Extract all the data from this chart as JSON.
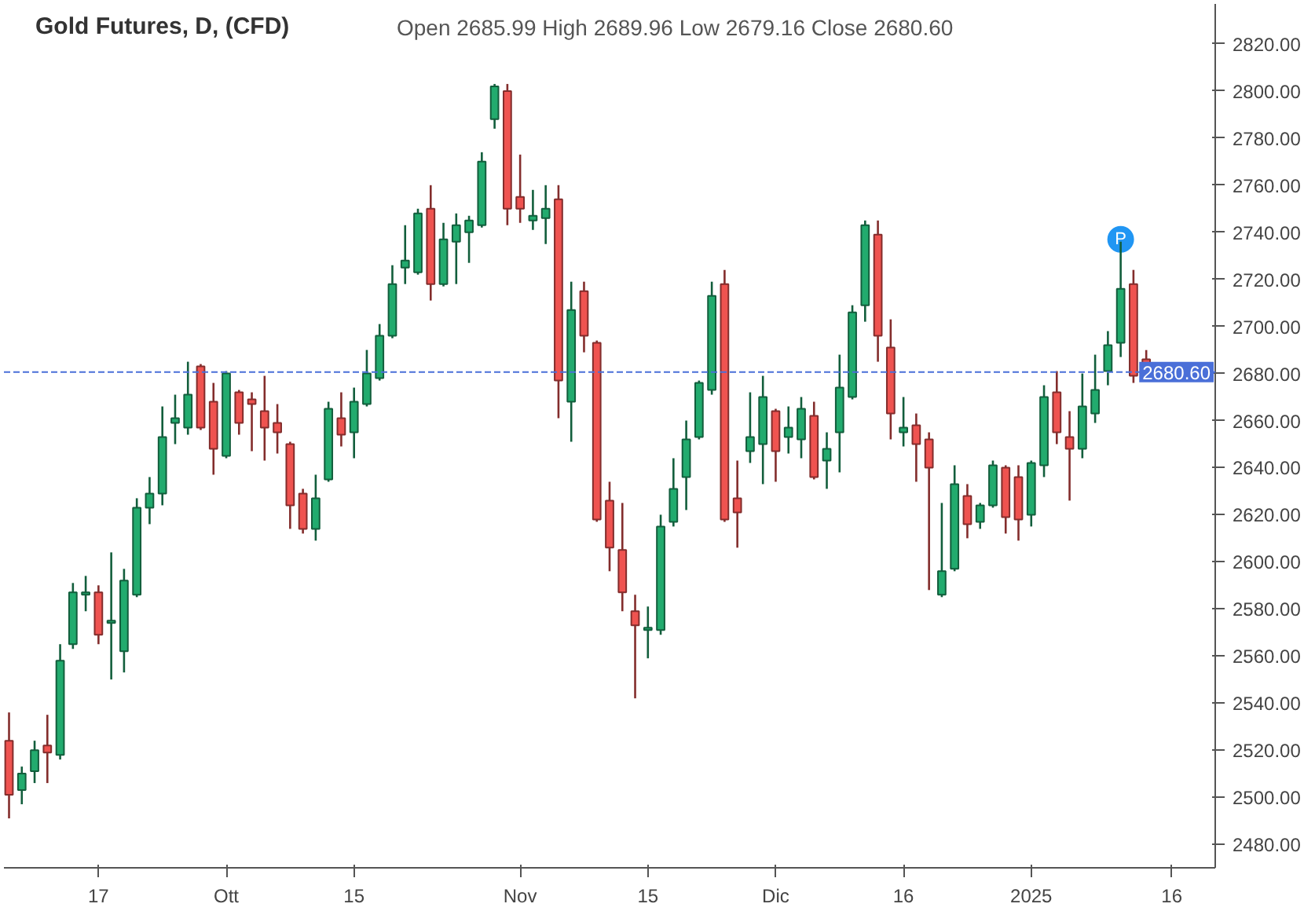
{
  "chart_data": {
    "type": "candlestick",
    "title": "Gold Futures, D, (CFD)",
    "subtitle": "Open 2685.99  High 2689.96  Low 2679.16  Close 2680.60",
    "categories": [
      null,
      null,
      null,
      null,
      null,
      null,
      null,
      "17",
      null,
      null,
      null,
      null,
      null,
      null,
      null,
      null,
      null,
      "Ott",
      null,
      null,
      null,
      null,
      null,
      null,
      null,
      null,
      null,
      "15",
      null,
      null,
      null,
      null,
      null,
      null,
      null,
      null,
      null,
      null,
      null,
      null,
      "Nov",
      null,
      null,
      null,
      null,
      null,
      null,
      null,
      null,
      null,
      "15",
      null,
      null,
      null,
      null,
      null,
      null,
      null,
      null,
      null,
      "Dic",
      null,
      null,
      null,
      null,
      null,
      null,
      null,
      null,
      null,
      "16",
      null,
      null,
      null,
      null,
      null,
      null,
      null,
      null,
      null,
      "2025",
      null,
      null,
      null,
      null,
      null,
      null,
      null,
      null,
      null,
      null,
      "16"
    ],
    "ohlc": [
      [
        2524,
        2536,
        2491,
        2501
      ],
      [
        2503,
        2513,
        2497,
        2510
      ],
      [
        2511,
        2524,
        2506,
        2520
      ],
      [
        2522,
        2535,
        2506,
        2519
      ],
      [
        2518,
        2565,
        2516,
        2558
      ],
      [
        2565,
        2591,
        2563,
        2587
      ],
      [
        2586,
        2594,
        2579,
        2587
      ],
      [
        2587,
        2590,
        2565,
        2569
      ],
      [
        2574,
        2604,
        2550,
        2575
      ],
      [
        2562,
        2597,
        2553,
        2592
      ],
      [
        2586,
        2627,
        2585,
        2623
      ],
      [
        2623,
        2636,
        2616,
        2629
      ],
      [
        2629,
        2666,
        2624,
        2653
      ],
      [
        2659,
        2671,
        2650,
        2661
      ],
      [
        2657,
        2685,
        2654,
        2671
      ],
      [
        2683,
        2684,
        2656,
        2657
      ],
      [
        2668,
        2676,
        2637,
        2648
      ],
      [
        2645,
        2681,
        2644,
        2680
      ],
      [
        2672,
        2673,
        2654,
        2659
      ],
      [
        2669,
        2672,
        2647,
        2667
      ],
      [
        2664,
        2679,
        2643,
        2657
      ],
      [
        2659,
        2667,
        2646,
        2655
      ],
      [
        2650,
        2651,
        2614,
        2624
      ],
      [
        2629,
        2631,
        2612,
        2614
      ],
      [
        2614,
        2637,
        2609,
        2627
      ],
      [
        2635,
        2668,
        2634,
        2665
      ],
      [
        2661,
        2672,
        2649,
        2654
      ],
      [
        2655,
        2674,
        2644,
        2668
      ],
      [
        2667,
        2690,
        2666,
        2680
      ],
      [
        2678,
        2701,
        2677,
        2696
      ],
      [
        2696,
        2726,
        2695,
        2718
      ],
      [
        2725,
        2743,
        2718,
        2728
      ],
      [
        2723,
        2750,
        2722,
        2748
      ],
      [
        2750,
        2760,
        2711,
        2718
      ],
      [
        2718,
        2744,
        2717,
        2737
      ],
      [
        2736,
        2748,
        2718,
        2743
      ],
      [
        2740,
        2747,
        2727,
        2745
      ],
      [
        2743,
        2774,
        2742,
        2770
      ],
      [
        2788,
        2803,
        2784,
        2802
      ],
      [
        2800,
        2803,
        2743,
        2750
      ],
      [
        2755,
        2773,
        2744,
        2750
      ],
      [
        2745,
        2758,
        2741,
        2747
      ],
      [
        2746,
        2760,
        2735,
        2750
      ],
      [
        2754,
        2760,
        2661,
        2677
      ],
      [
        2668,
        2719,
        2651,
        2707
      ],
      [
        2715,
        2719,
        2689,
        2696
      ],
      [
        2693,
        2694,
        2617,
        2618
      ],
      [
        2626,
        2634,
        2596,
        2606
      ],
      [
        2605,
        2625,
        2579,
        2587
      ],
      [
        2579,
        2586,
        2542,
        2573
      ],
      [
        2571,
        2581,
        2559,
        2572
      ],
      [
        2571,
        2620,
        2569,
        2615
      ],
      [
        2617,
        2644,
        2615,
        2631
      ],
      [
        2636,
        2660,
        2622,
        2652
      ],
      [
        2653,
        2677,
        2652,
        2676
      ],
      [
        2673,
        2719,
        2671,
        2713
      ],
      [
        2718,
        2724,
        2617,
        2618
      ],
      [
        2627,
        2643,
        2606,
        2621
      ],
      [
        2647,
        2672,
        2642,
        2653
      ],
      [
        2650,
        2679,
        2633,
        2670
      ],
      [
        2664,
        2665,
        2634,
        2647
      ],
      [
        2653,
        2666,
        2646,
        2657
      ],
      [
        2652,
        2670,
        2644,
        2665
      ],
      [
        2662,
        2668,
        2635,
        2636
      ],
      [
        2643,
        2655,
        2631,
        2648
      ],
      [
        2655,
        2688,
        2638,
        2674
      ],
      [
        2670,
        2709,
        2669,
        2706
      ],
      [
        2709,
        2745,
        2702,
        2743
      ],
      [
        2739,
        2745,
        2685,
        2696
      ],
      [
        2691,
        2703,
        2652,
        2663
      ],
      [
        2655,
        2670,
        2649,
        2657
      ],
      [
        2658,
        2663,
        2634,
        2650
      ],
      [
        2652,
        2655,
        2588,
        2640
      ],
      [
        2586,
        2625,
        2585,
        2596
      ],
      [
        2597,
        2641,
        2596,
        2633
      ],
      [
        2628,
        2633,
        2610,
        2616
      ],
      [
        2617,
        2625,
        2614,
        2624
      ],
      [
        2624,
        2643,
        2623,
        2641
      ],
      [
        2640,
        2641,
        2612,
        2619
      ],
      [
        2636,
        2641,
        2609,
        2618
      ],
      [
        2620,
        2643,
        2615,
        2642
      ],
      [
        2641,
        2675,
        2636,
        2670
      ],
      [
        2672,
        2681,
        2650,
        2655
      ],
      [
        2653,
        2664,
        2626,
        2648
      ],
      [
        2648,
        2680,
        2644,
        2666
      ],
      [
        2663,
        2688,
        2659,
        2673
      ],
      [
        2681,
        2698,
        2675,
        2692
      ],
      [
        2693,
        2736,
        2687,
        2716
      ],
      [
        2718,
        2724,
        2676,
        2679
      ],
      [
        2685.99,
        2689.96,
        2679.16,
        2680.6
      ],
      null,
      null
    ],
    "colors": [
      "#ef5350",
      "#22ab6e",
      "#22ab6e",
      "#ef5350",
      "#22ab6e",
      "#22ab6e",
      "#22ab6e",
      "#ef5350",
      "#22ab6e",
      "#22ab6e",
      "#22ab6e",
      "#22ab6e",
      "#22ab6e",
      "#22ab6e",
      "#22ab6e",
      "#ef5350",
      "#ef5350",
      "#22ab6e",
      "#ef5350",
      "#ef5350",
      "#ef5350",
      "#ef5350",
      "#ef5350",
      "#ef5350",
      "#22ab6e",
      "#22ab6e",
      "#ef5350",
      "#22ab6e",
      "#22ab6e",
      "#22ab6e",
      "#22ab6e",
      "#22ab6e",
      "#22ab6e",
      "#ef5350",
      "#22ab6e",
      "#22ab6e",
      "#22ab6e",
      "#22ab6e",
      "#22ab6e",
      "#ef5350",
      "#ef5350",
      "#22ab6e",
      "#22ab6e",
      "#ef5350",
      "#22ab6e",
      "#ef5350",
      "#ef5350",
      "#ef5350",
      "#ef5350",
      "#ef5350",
      "#22ab6e",
      "#22ab6e",
      "#22ab6e",
      "#22ab6e",
      "#22ab6e",
      "#22ab6e",
      "#ef5350",
      "#ef5350",
      "#22ab6e",
      "#22ab6e",
      "#ef5350",
      "#22ab6e",
      "#22ab6e",
      "#ef5350",
      "#22ab6e",
      "#22ab6e",
      "#22ab6e",
      "#22ab6e",
      "#ef5350",
      "#ef5350",
      "#22ab6e",
      "#ef5350",
      "#ef5350",
      "#22ab6e",
      "#22ab6e",
      "#ef5350",
      "#22ab6e",
      "#22ab6e",
      "#ef5350",
      "#ef5350",
      "#22ab6e",
      "#22ab6e",
      "#ef5350",
      "#ef5350",
      "#22ab6e",
      "#22ab6e",
      "#22ab6e",
      "#22ab6e",
      "#ef5350",
      "#ef5350",
      null,
      null
    ],
    "ylim": [
      2470,
      2837
    ],
    "yticks": [
      {
        "value": 2480,
        "label": "2480.00"
      },
      {
        "value": 2500,
        "label": "2500.00"
      },
      {
        "value": 2520,
        "label": "2520.00"
      },
      {
        "value": 2540,
        "label": "2540.00"
      },
      {
        "value": 2560,
        "label": "2560.00"
      },
      {
        "value": 2580,
        "label": "2580.00"
      },
      {
        "value": 2600,
        "label": "2600.00"
      },
      {
        "value": 2620,
        "label": "2620.00"
      },
      {
        "value": 2640,
        "label": "2640.00"
      },
      {
        "value": 2660,
        "label": "2660.00"
      },
      {
        "value": 2680,
        "label": "2680.00"
      },
      {
        "value": 2700,
        "label": "2700.00"
      },
      {
        "value": 2720,
        "label": "2720.00"
      },
      {
        "value": 2740,
        "label": "2740.00"
      },
      {
        "value": 2760,
        "label": "2760.00"
      },
      {
        "value": 2780,
        "label": "2780.00"
      },
      {
        "value": 2800,
        "label": "2800.00"
      },
      {
        "value": 2820,
        "label": "2820.00"
      }
    ],
    "ref_lines": [
      {
        "axis": "y",
        "value": 2680.6,
        "label": "2680.60",
        "color": "#4a6fd8",
        "line_style": "dashed"
      }
    ],
    "annotations": [
      {
        "text": "P",
        "y": 2737
      }
    ]
  }
}
